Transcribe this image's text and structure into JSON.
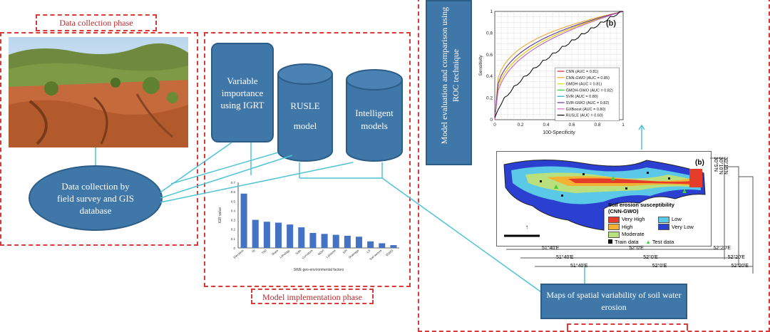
{
  "phases": {
    "data_collection": "Data collection phase",
    "model_implementation": "Model implementation phase"
  },
  "boxes": {
    "data_collection_ellipse": [
      "Data collection by",
      "field survey and GIS",
      "database"
    ],
    "variable_importance": [
      "Variable",
      "importance",
      "using IGRT"
    ],
    "rusle": [
      "RUSLE",
      "model"
    ],
    "intelligent": [
      "Intelligent",
      "models"
    ],
    "model_evaluation_vertical": [
      "Model evaluation and comparison using",
      "ROC technique"
    ],
    "maps_box": [
      "Maps of spatial variability of soil water",
      "erosion"
    ]
  },
  "bar_chart": {
    "ylabel": "IGR value",
    "xlabel": "SWE geo-environmental factors",
    "ylim": [
      0,
      0.7
    ],
    "yticks": [
      "0",
      "0.1",
      "0.2",
      "0.3",
      "0.4",
      "0.5",
      "0.6",
      "0.7"
    ],
    "categories": [
      "Elevation",
      "RI",
      "TWI",
      "Slope",
      "Lithology",
      "Soils",
      "Curvature",
      "NDVI",
      "Landuse",
      "SPI",
      "Drainage",
      "LS",
      "Soil texture",
      "DSRG"
    ],
    "values": [
      0.58,
      0.3,
      0.28,
      0.27,
      0.25,
      0.22,
      0.16,
      0.15,
      0.14,
      0.13,
      0.12,
      0.07,
      0.05,
      0.03
    ]
  },
  "roc": {
    "panel_label": "(b)",
    "xlabel": "100-Specificity",
    "ylabel": "Sensitivity",
    "xticks": [
      "0",
      "0.2",
      "0.4",
      "0.6",
      "0.8",
      "1"
    ],
    "yticks": [
      "0",
      "0.2",
      "0.4",
      "0.6",
      "0.8",
      "1"
    ],
    "legend": [
      {
        "label": "CNN (AUC = 0.81)",
        "color": "#d62020"
      },
      {
        "label": "CNN-GWO (AUC = 0.85)",
        "color": "#f0a020"
      },
      {
        "label": "GMDH (AUC = 0.81)",
        "color": "#e0e000"
      },
      {
        "label": "GMDH-GWO (AUC = 0.82)",
        "color": "#40c040"
      },
      {
        "label": "SVR (AUC = 0.80)",
        "color": "#20b0c0"
      },
      {
        "label": "SVR-GWO (AUC = 0.82)",
        "color": "#6a2fa0"
      },
      {
        "label": "GXBoost (AUC = 0.80)",
        "color": "#e060c0"
      },
      {
        "label": "RUSLE (AUC = 0.60)",
        "color": "#000000"
      }
    ]
  },
  "map": {
    "panel_label": "(b)",
    "legend_title": [
      "Soil erosion susceptibility",
      "(CNN-GWO)"
    ],
    "legend_items": [
      {
        "label": "Very High",
        "color": "#e53d2a"
      },
      {
        "label": "Low",
        "color": "#5bc8e8"
      },
      {
        "label": "High",
        "color": "#f3b233"
      },
      {
        "label": "Very Low",
        "color": "#2b3fd1"
      },
      {
        "label": "Moderate",
        "color": "#b9e07c"
      }
    ],
    "train_label": "Train data",
    "test_label": "Test data",
    "lon_labels_row1": [
      "51°40'E",
      "52°0'E",
      "52°20'E"
    ],
    "lon_labels_row2": [
      "51°40'E",
      "52°0'E",
      "52°20'E"
    ],
    "lon_labels_row3": [
      "51°40'E",
      "52°0'E",
      "52°20'E"
    ],
    "lat_labels": [
      "30°15'N",
      "30°10'N",
      "30°5'N"
    ]
  }
}
